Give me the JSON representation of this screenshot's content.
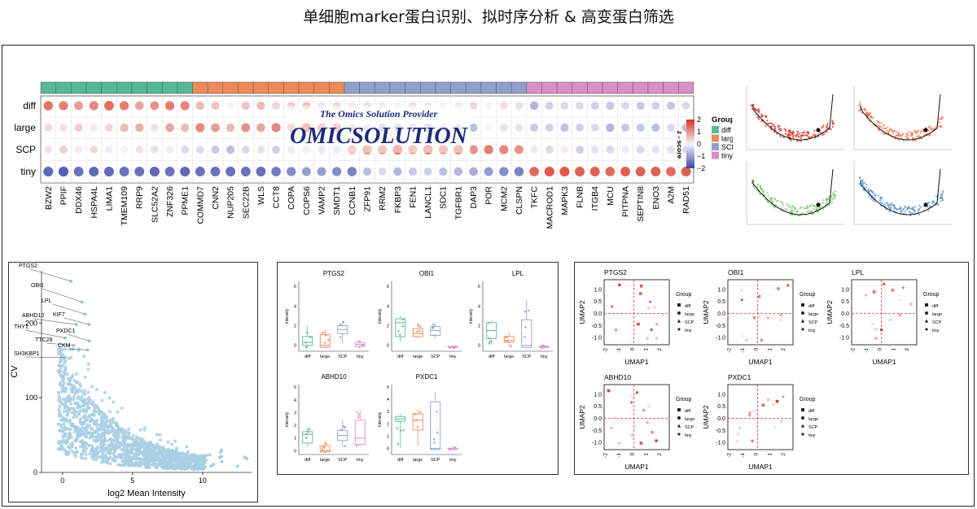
{
  "page_title": "单细胞marker蛋白识别、拟时序分析 & 高变蛋白筛选",
  "watermark": {
    "tagline": "The Omics Solution Provider",
    "brand": "OMICSOLUTION"
  },
  "colors": {
    "diff": "#58b895",
    "large": "#ee8a5a",
    "SCP": "#8fa0cc",
    "tiny": "#d98ec6",
    "high": "#d7301f",
    "low": "#3a46a8",
    "mid": "#f4f4f8",
    "scatter": "#a8cfe3"
  },
  "chart_data": [
    {
      "type": "heatmap",
      "row_labels": [
        "diff",
        "large",
        "SCP",
        "tiny"
      ],
      "column_labels": [
        "BZW2",
        "PPIF",
        "DDX46",
        "HSPA4L",
        "LIMA1",
        "TMEM109",
        "RRP9",
        "SLC52A2",
        "ZNF326",
        "PPME1",
        "COMMD7",
        "CNN2",
        "NUP205",
        "SEC22B",
        "WLS",
        "CCT8",
        "COPA",
        "COPS6",
        "VAMP2",
        "SMDT1",
        "CCNB1",
        "ZFP91",
        "RRM2",
        "FKBP3",
        "FEN1",
        "LANCL1",
        "SDC1",
        "TGFBR1",
        "DAP3",
        "POR",
        "MCM2",
        "CLSPN",
        "TKFC",
        "MACROD1",
        "MAPK3",
        "FLNB",
        "ITGB4",
        "MCU",
        "PITPNA",
        "SEPTIN8",
        "ENO3",
        "A2M",
        "RAD51"
      ],
      "column_groups": [
        "diff",
        "diff",
        "diff",
        "diff",
        "diff",
        "diff",
        "diff",
        "diff",
        "diff",
        "diff",
        "large",
        "large",
        "large",
        "large",
        "large",
        "large",
        "large",
        "large",
        "large",
        "large",
        "SCP",
        "SCP",
        "SCP",
        "SCP",
        "SCP",
        "SCP",
        "SCP",
        "SCP",
        "SCP",
        "SCP",
        "SCP",
        "SCP",
        "tiny",
        "tiny",
        "tiny",
        "tiny",
        "tiny",
        "tiny",
        "tiny",
        "tiny",
        "tiny",
        "tiny",
        "tiny"
      ],
      "values": [
        [
          1.3,
          1.2,
          0.9,
          1.1,
          1.4,
          1.2,
          0.8,
          1.0,
          1.2,
          1.1,
          0.6,
          0.5,
          0.0,
          0.5,
          0.6,
          0.3,
          0.4,
          0.5,
          0.2,
          0.3,
          0.1,
          -0.2,
          0.1,
          0.0,
          0.2,
          0.1,
          0.0,
          -0.1,
          0.3,
          0.0,
          0.2,
          -0.2,
          -0.7,
          -0.4,
          -0.3,
          -0.3,
          -0.4,
          -0.5,
          -0.3,
          -0.5,
          -0.4,
          -0.5,
          -0.3
        ],
        [
          0.3,
          0.2,
          0.4,
          0.1,
          0.3,
          0.6,
          0.7,
          0.2,
          0.8,
          0.6,
          1.1,
          0.9,
          0.6,
          1.0,
          0.8,
          1.1,
          0.7,
          1.3,
          0.9,
          1.0,
          0.4,
          -0.3,
          -0.6,
          -0.5,
          -0.4,
          -0.7,
          -0.3,
          -0.4,
          -0.6,
          0.0,
          -0.2,
          -0.2,
          -0.5,
          -0.4,
          -0.6,
          -0.4,
          -0.3,
          -0.7,
          -0.5,
          -0.5,
          -0.6,
          -0.3,
          -0.6
        ],
        [
          0.2,
          0.4,
          0.1,
          0.3,
          -0.1,
          0.0,
          0.2,
          -0.2,
          0.1,
          -0.3,
          -0.3,
          -0.5,
          -0.6,
          -0.3,
          -0.2,
          -0.4,
          -0.3,
          -0.2,
          -0.4,
          -0.3,
          0.9,
          1.3,
          1.2,
          1.5,
          1.1,
          1.4,
          1.2,
          1.3,
          1.0,
          1.2,
          1.1,
          1.0,
          -0.1,
          -0.3,
          0.1,
          -0.4,
          -0.2,
          -0.3,
          -0.1,
          -0.3,
          -0.2,
          -0.2,
          -0.3
        ],
        [
          -1.6,
          -1.7,
          -1.5,
          -1.6,
          -1.6,
          -1.5,
          -1.5,
          -1.6,
          -1.5,
          -1.6,
          -1.5,
          -1.5,
          -1.5,
          -1.5,
          -1.5,
          -1.4,
          -1.2,
          -1.0,
          -1.0,
          -1.2,
          -1.3,
          -0.6,
          -0.3,
          -0.7,
          -0.5,
          -0.4,
          -0.6,
          -0.7,
          -0.8,
          -1.0,
          -1.2,
          -1.3,
          1.4,
          1.6,
          1.6,
          1.5,
          1.5,
          1.4,
          1.5,
          1.5,
          1.5,
          1.4,
          1.5
        ]
      ],
      "colorbar": {
        "title": "z - score",
        "ticks": [
          "2",
          "1",
          "0",
          "−1",
          "−2"
        ]
      },
      "legend": {
        "title": "Group",
        "items": [
          "diff",
          "large",
          "SCP",
          "tiny"
        ]
      }
    },
    {
      "type": "scatter",
      "description": "Pseudotime UMAP trajectories (4 small panels)",
      "series": [
        {
          "color": "#d7301f"
        },
        {
          "color": "#ef6a4a"
        },
        {
          "color": "#7cc46a"
        },
        {
          "color": "#4f93cf"
        }
      ]
    },
    {
      "type": "scatter",
      "xlabel": "log2 Mean Intensity",
      "ylabel": "CV",
      "xlim": [
        -1.5,
        13.5
      ],
      "ylim": [
        0,
        270
      ],
      "x_ticks": [
        "0",
        "5",
        "10"
      ],
      "y_ticks": [
        "0",
        "100",
        "200"
      ],
      "annotations": [
        {
          "label": "PTGS2",
          "x": 0.6,
          "y": 256
        },
        {
          "label": "OBI1",
          "x": 1.4,
          "y": 228
        },
        {
          "label": "LPL",
          "x": 1.6,
          "y": 212
        },
        {
          "label": "ABHD10",
          "x": 1.0,
          "y": 198
        },
        {
          "label": "KIF7",
          "x": 1.9,
          "y": 198
        },
        {
          "label": "THY1",
          "x": 0.2,
          "y": 180
        },
        {
          "label": "PXDC1",
          "x": 1.9,
          "y": 176
        },
        {
          "label": "TTC28",
          "x": 0.8,
          "y": 170
        },
        {
          "label": "CKM",
          "x": 1.8,
          "y": 164
        },
        {
          "label": "SH3KBP1",
          "x": 0.2,
          "y": 154
        }
      ]
    },
    {
      "type": "box",
      "ylabel": "Intensity",
      "categories": [
        "diff",
        "large",
        "SCP",
        "tiny"
      ],
      "panels": [
        {
          "title": "PTGS2",
          "ylim": [
            -0.6,
            6.5
          ],
          "y_ticks": [
            "0",
            "2",
            "4",
            "6"
          ],
          "boxes": [
            [
              -0.3,
              0.0,
              0.3,
              0.9,
              2.0
            ],
            [
              -0.3,
              -0.2,
              0.0,
              1.1,
              1.6
            ],
            [
              0.2,
              1.2,
              1.6,
              2.0,
              2.4
            ],
            [
              -0.2,
              -0.1,
              0.1,
              0.3,
              0.6
            ]
          ]
        },
        {
          "title": "OBI1",
          "ylim": [
            -0.6,
            6.5
          ],
          "y_ticks": [
            "0",
            "2",
            "4",
            "6"
          ],
          "boxes": [
            [
              0.3,
              0.9,
              2.3,
              2.7,
              3.0
            ],
            [
              0.7,
              0.9,
              1.2,
              1.7,
              2.2
            ],
            [
              0.7,
              1.0,
              1.5,
              1.9,
              2.3
            ],
            [
              -0.3,
              -0.2,
              -0.2,
              -0.1,
              0.0
            ]
          ]
        },
        {
          "title": "LPL",
          "ylim": [
            -0.6,
            6.5
          ],
          "y_ticks": [
            "0",
            "2",
            "4",
            "6"
          ],
          "boxes": [
            [
              0.1,
              0.7,
              1.5,
              2.3,
              2.5
            ],
            [
              -0.1,
              0.3,
              0.5,
              0.9,
              1.4
            ],
            [
              -0.3,
              -0.2,
              0.0,
              2.6,
              4.6
            ],
            [
              -0.3,
              -0.2,
              -0.2,
              -0.1,
              0.0
            ]
          ]
        },
        {
          "title": "ABHD10",
          "ylim": [
            -0.3,
            5.2
          ],
          "y_ticks": [
            "0",
            "1",
            "2",
            "3",
            "4",
            "5"
          ],
          "boxes": [
            [
              0.3,
              0.6,
              1.3,
              1.5,
              1.8
            ],
            [
              -0.2,
              -0.1,
              0.0,
              0.4,
              0.8
            ],
            [
              0.3,
              0.8,
              1.2,
              1.6,
              2.4
            ],
            [
              0.3,
              0.5,
              1.0,
              2.4,
              3.2
            ]
          ]
        },
        {
          "title": "PXDC1",
          "ylim": [
            -0.5,
            5.2
          ],
          "y_ticks": [
            "0",
            "1",
            "2",
            "3",
            "4",
            "5"
          ],
          "boxes": [
            [
              0.0,
              2.2,
              2.4,
              2.6,
              2.8
            ],
            [
              0.2,
              1.5,
              2.3,
              2.8,
              3.2
            ],
            [
              -0.2,
              -0.1,
              0.0,
              3.8,
              4.6
            ],
            [
              -0.2,
              -0.1,
              -0.1,
              0.0,
              0.1
            ]
          ]
        }
      ]
    },
    {
      "type": "scatter",
      "xlabel": "UMAP1",
      "ylabel": "UMAP2",
      "xlim": [
        -2.2,
        2.6
      ],
      "ylim": [
        -1.3,
        1.4
      ],
      "x_ticks": [
        "-2",
        "-1",
        "0",
        "1",
        "2"
      ],
      "y_ticks": [
        "1.0",
        "0.5",
        "0.0",
        "-0.5",
        "-1.0"
      ],
      "legend": {
        "title": "Group",
        "items": [
          "diff",
          "large",
          "SCP",
          "tiny"
        ]
      },
      "panels": [
        {
          "title": "PTGS2"
        },
        {
          "title": "OBI1"
        },
        {
          "title": "LPL"
        },
        {
          "title": "ABHD10"
        },
        {
          "title": "PXDC1"
        }
      ]
    }
  ]
}
